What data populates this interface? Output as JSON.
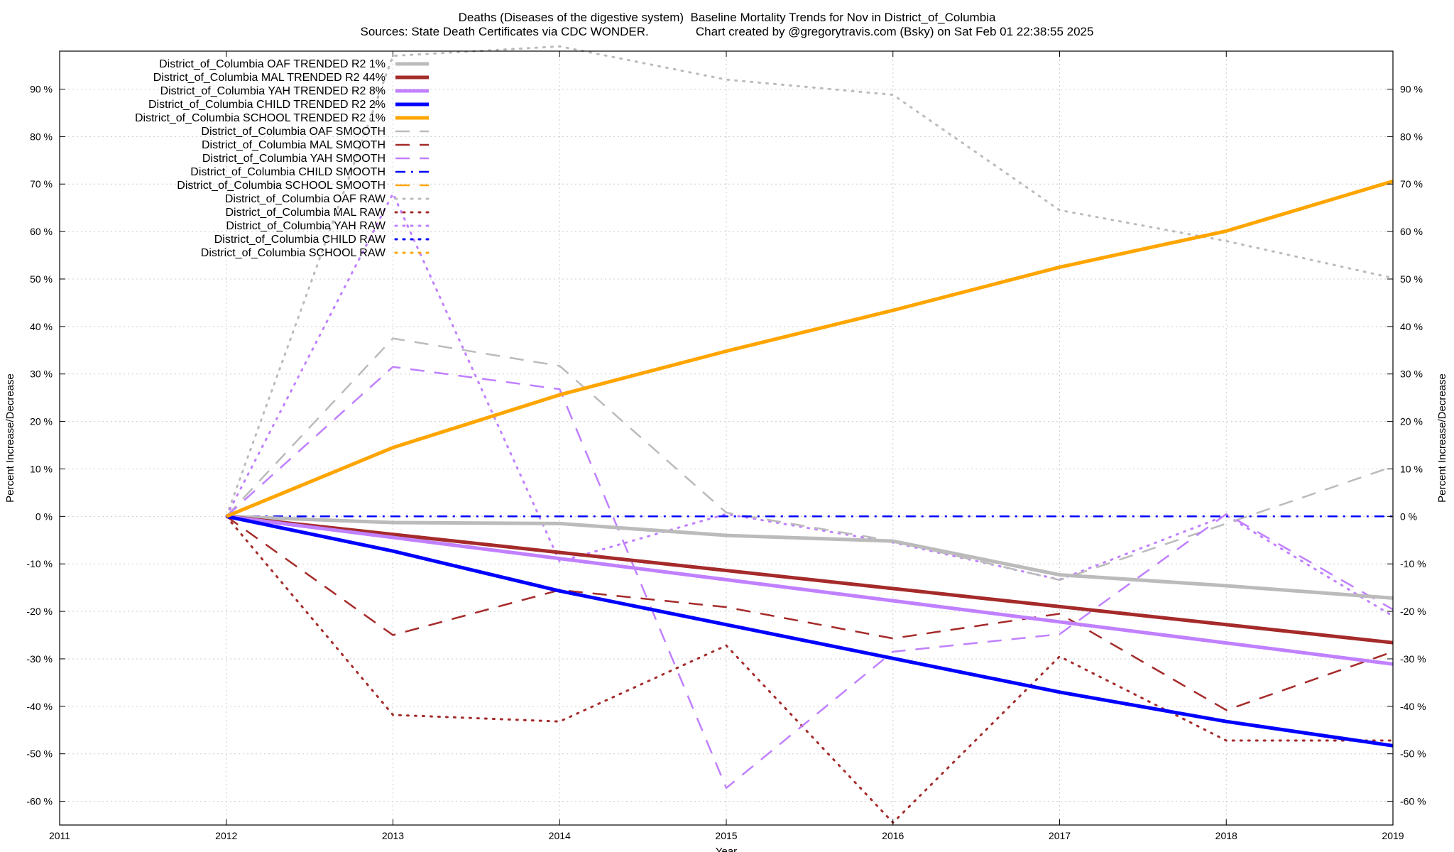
{
  "chart_data": {
    "type": "line",
    "title": "Deaths (Diseases of the digestive system)  Baseline Mortality Trends for Nov in District_of_Columbia",
    "subtitle": "Sources: State Death Certificates via CDC WONDER.              Chart created by @gregorytravis.com (Bsky) on Sat Feb 01 22:38:55 2025",
    "xlabel": "Year",
    "ylabel": "Percent Increase/Decrease",
    "xlim": [
      2011,
      2019
    ],
    "ylim": [
      -65,
      98
    ],
    "xticks": [
      "2011",
      "2012",
      "2013",
      "2014",
      "2015",
      "2016",
      "2017",
      "2018",
      "2019"
    ],
    "yticks": [
      "-60 %",
      "-50 %",
      "-40 %",
      "-30 %",
      "-20 %",
      "-10 %",
      "0 %",
      "10 %",
      "20 %",
      "30 %",
      "40 %",
      "50 %",
      "60 %",
      "70 %",
      "80 %",
      "90 %"
    ],
    "grid": true,
    "legend_position": "top-left",
    "series": [
      {
        "name": "District_of_Columbia OAF TRENDED R2   1%",
        "color": "#bbbbbb",
        "style": "solid",
        "x": [
          2012,
          2013,
          2014,
          2015,
          2016,
          2017,
          2018,
          2019
        ],
        "y": [
          0,
          -1.3,
          -1.5,
          -4,
          -5.2,
          -12.3,
          -14.6,
          -17.2
        ]
      },
      {
        "name": "District_of_Columbia MAL TRENDED R2  44%",
        "color": "#a52a2a",
        "style": "solid",
        "x": [
          2012,
          2019
        ],
        "y": [
          0,
          -26.6
        ]
      },
      {
        "name": "District_of_Columbia YAH TRENDED R2   8%",
        "color": "#c080ff",
        "style": "solid",
        "x": [
          2012,
          2019
        ],
        "y": [
          0,
          -31.1
        ]
      },
      {
        "name": "District_of_Columbia CHILD TRENDED R2   2%",
        "color": "#0000ff",
        "style": "solid",
        "x": [
          2012,
          2013,
          2014,
          2015,
          2016,
          2017,
          2018,
          2019
        ],
        "y": [
          0,
          -7.3,
          -15.7,
          -22.8,
          -29.9,
          -37,
          -43.2,
          -48.3
        ]
      },
      {
        "name": "District_of_Columbia SCHOOL TRENDED R2   1%",
        "color": "#ffa500",
        "style": "solid",
        "x": [
          2012,
          2013,
          2014,
          2015,
          2016,
          2017,
          2018,
          2019
        ],
        "y": [
          0,
          14.5,
          25.6,
          34.8,
          43.4,
          52.5,
          60.1,
          70.6
        ]
      },
      {
        "name": "District_of_Columbia OAF SMOOTH",
        "color": "#bbbbbb",
        "style": "dash",
        "x": [
          2012,
          2013,
          2014,
          2015,
          2016,
          2017,
          2018,
          2019
        ],
        "y": [
          0,
          37.5,
          31.7,
          0.8,
          -5.2,
          -13.4,
          -1.5,
          10.5
        ]
      },
      {
        "name": "District_of_Columbia MAL SMOOTH",
        "color": "#a52a2a",
        "style": "dash",
        "x": [
          2012,
          2013,
          2014,
          2015,
          2016,
          2017,
          2018,
          2019
        ],
        "y": [
          0,
          -25,
          -15.5,
          -19.1,
          -25.7,
          -20.5,
          -40.8,
          -28.5
        ]
      },
      {
        "name": "District_of_Columbia YAH SMOOTH",
        "color": "#c080ff",
        "style": "dash",
        "x": [
          2012,
          2013,
          2014,
          2015,
          2016,
          2017,
          2018,
          2019
        ],
        "y": [
          0,
          31.5,
          26.8,
          -57.2,
          -28.5,
          -24.8,
          0.5,
          -19.6
        ]
      },
      {
        "name": "District_of_Columbia CHILD SMOOTH",
        "color": "#0000ff",
        "style": "dashdot",
        "x": [
          2012,
          2013,
          2014,
          2015,
          2016,
          2017,
          2018,
          2019
        ],
        "y": [
          0,
          0,
          0,
          0,
          0,
          0,
          0,
          0
        ]
      },
      {
        "name": "District_of_Columbia SCHOOL SMOOTH",
        "color": "#ffa500",
        "style": "dash",
        "x": [],
        "y": []
      },
      {
        "name": "District_of_Columbia OAF RAW",
        "color": "#bbbbbb",
        "style": "dot",
        "x": [
          2012,
          2013,
          2014,
          2015,
          2016,
          2017,
          2018,
          2019
        ],
        "y": [
          0,
          97,
          99,
          92,
          88.8,
          64.5,
          58,
          50.2
        ]
      },
      {
        "name": "District_of_Columbia MAL RAW",
        "color": "#a52a2a",
        "style": "dot",
        "x": [
          2012,
          2013,
          2014,
          2015,
          2016,
          2017,
          2018,
          2019
        ],
        "y": [
          0,
          -41.8,
          -43.2,
          -27.2,
          -64.5,
          -29.5,
          -47.2,
          -47.2
        ]
      },
      {
        "name": "District_of_Columbia YAH RAW",
        "color": "#c080ff",
        "style": "dot",
        "x": [
          2012,
          2013,
          2014,
          2015,
          2016,
          2017,
          2018,
          2019
        ],
        "y": [
          0,
          68,
          -9.5,
          0.5,
          -5.5,
          -13.3,
          0.2,
          -21
        ]
      },
      {
        "name": "District_of_Columbia CHILD RAW",
        "color": "#0000ff",
        "style": "dot",
        "x": [],
        "y": []
      },
      {
        "name": "District_of_Columbia SCHOOL RAW",
        "color": "#ffa500",
        "style": "dot",
        "x": [],
        "y": []
      }
    ]
  }
}
